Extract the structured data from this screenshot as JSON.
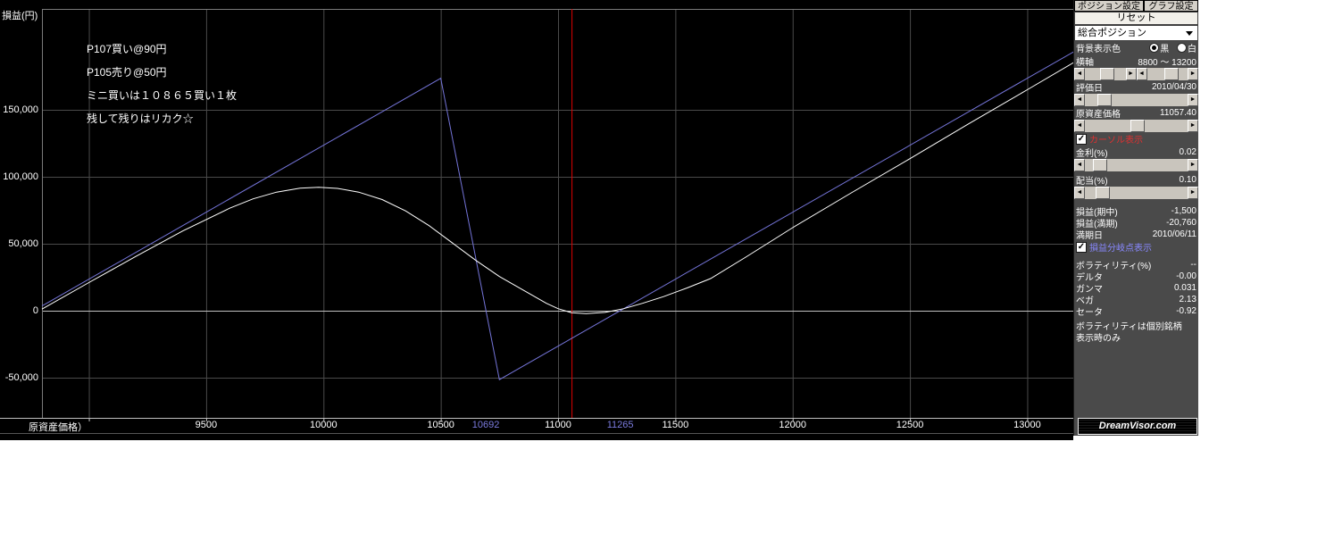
{
  "chart_data": {
    "type": "line",
    "title": "",
    "xlabel": "原資産価格）",
    "ylabel": "損益(円)",
    "xlim": [
      8800,
      13200
    ],
    "ylim": [
      -80000,
      225333
    ],
    "grid": true,
    "legend": false,
    "x_gridlines": [
      9000,
      9500,
      10000,
      10500,
      11000,
      11500,
      12000,
      12500,
      13000
    ],
    "xticks": [
      {
        "v": 9500,
        "label": "9500"
      },
      {
        "v": 10000,
        "label": "10000"
      },
      {
        "v": 10500,
        "label": "10500"
      },
      {
        "v": 11000,
        "label": "11000"
      },
      {
        "v": 11500,
        "label": "11500"
      },
      {
        "v": 12000,
        "label": "12000"
      },
      {
        "v": 12500,
        "label": "12500"
      },
      {
        "v": 13000,
        "label": "13000"
      }
    ],
    "yticks": [
      {
        "v": 150000,
        "label": "150,000"
      },
      {
        "v": 100000,
        "label": "100,000"
      },
      {
        "v": 50000,
        "label": "50,000"
      },
      {
        "v": 0,
        "label": "0"
      },
      {
        "v": -50000,
        "label": "-50,000"
      }
    ],
    "breakeven_points": [
      {
        "v": 10692,
        "label": "10692"
      },
      {
        "v": 11265,
        "label": "11265"
      }
    ],
    "cursor_price": 11057.4,
    "annotations": [
      "P107買い@90円",
      "P105売り@50円",
      "ミニ買いは１０８６５買い１枚",
      "残して残りはリカク☆"
    ],
    "series": [
      {
        "name": "損益(満期)",
        "color": "#7474d8",
        "points": [
          [
            8800,
            3500
          ],
          [
            10500,
            173500
          ],
          [
            10750,
            -51500
          ],
          [
            13200,
            193500
          ]
        ]
      },
      {
        "name": "損益(期中)",
        "color": "#ffffff",
        "points": [
          [
            8800,
            1200
          ],
          [
            9000,
            21000
          ],
          [
            9200,
            40500
          ],
          [
            9400,
            59500
          ],
          [
            9600,
            76500
          ],
          [
            9700,
            83500
          ],
          [
            9800,
            88500
          ],
          [
            9900,
            91500
          ],
          [
            9980,
            92200
          ],
          [
            10060,
            91300
          ],
          [
            10150,
            88500
          ],
          [
            10250,
            83000
          ],
          [
            10350,
            74500
          ],
          [
            10450,
            63500
          ],
          [
            10550,
            50500
          ],
          [
            10650,
            37500
          ],
          [
            10750,
            25500
          ],
          [
            10850,
            15500
          ],
          [
            10950,
            5500
          ],
          [
            11000,
            1500
          ],
          [
            11057,
            -1500
          ],
          [
            11120,
            -2200
          ],
          [
            11200,
            -1300
          ],
          [
            11280,
            1500
          ],
          [
            11360,
            5500
          ],
          [
            11450,
            10500
          ],
          [
            11550,
            17000
          ],
          [
            11650,
            24000
          ],
          [
            11800,
            40000
          ],
          [
            12000,
            62000
          ],
          [
            12250,
            88000
          ],
          [
            12500,
            113500
          ],
          [
            12750,
            139500
          ],
          [
            13000,
            165000
          ],
          [
            13200,
            185500
          ]
        ]
      }
    ],
    "colors": {
      "background": "#000000",
      "grid": "#4a4a4a",
      "zero_line": "#c0c0c0",
      "border": "#7a7a7a",
      "cursor_line": "#dd0000",
      "breakeven_label": "#7b7bde"
    }
  },
  "sidebar": {
    "tabs": [
      {
        "label": "ポジション設定"
      },
      {
        "label": "グラフ設定"
      }
    ],
    "reset_label": "リセット",
    "position_select": "総合ポジション",
    "bg_row": {
      "label": "背景表示色",
      "black_label": "黒",
      "white_label": "白",
      "selected": "黒"
    },
    "axis_row": {
      "label": "横軸",
      "value": "8800 ～ 13200",
      "thumb_left": 0.38,
      "thumb_right": 0.42
    },
    "eval_row": {
      "label": "評価日",
      "value": "2010/04/30",
      "thumb": 0.12
    },
    "price_row": {
      "label": "原資産価格",
      "value": "11057.40",
      "thumb": 0.44
    },
    "cursor_row": {
      "label": "カーソル表示",
      "checked": true
    },
    "rate_row": {
      "label": "金利(%)",
      "value": "0.02",
      "thumb": 0.08
    },
    "dividend_row": {
      "label": "配当(%)",
      "value": "0.10",
      "thumb": 0.1
    },
    "pl_mid": {
      "label": "損益(期中)",
      "value": "-1,500"
    },
    "pl_exp": {
      "label": "損益(満期)",
      "value": "-20,760"
    },
    "expiry": {
      "label": "満期日",
      "value": "2010/06/11"
    },
    "breakeven_row": {
      "label": "損益分岐点表示",
      "checked": true
    },
    "greeks": [
      {
        "label": "ボラティリティ(%)",
        "value": "--"
      },
      {
        "label": "デルタ",
        "value": "-0.00"
      },
      {
        "label": "ガンマ",
        "value": "0.031"
      },
      {
        "label": "ベガ",
        "value": "2.13"
      },
      {
        "label": "セータ",
        "value": "-0.92"
      }
    ],
    "note_lines": [
      "ボラティリティは個別銘柄",
      "表示時のみ"
    ],
    "logo_text": "DreamVisor.com",
    "check_glyph": "✓",
    "arrow_left_glyph": "◄",
    "arrow_right_glyph": "►"
  }
}
